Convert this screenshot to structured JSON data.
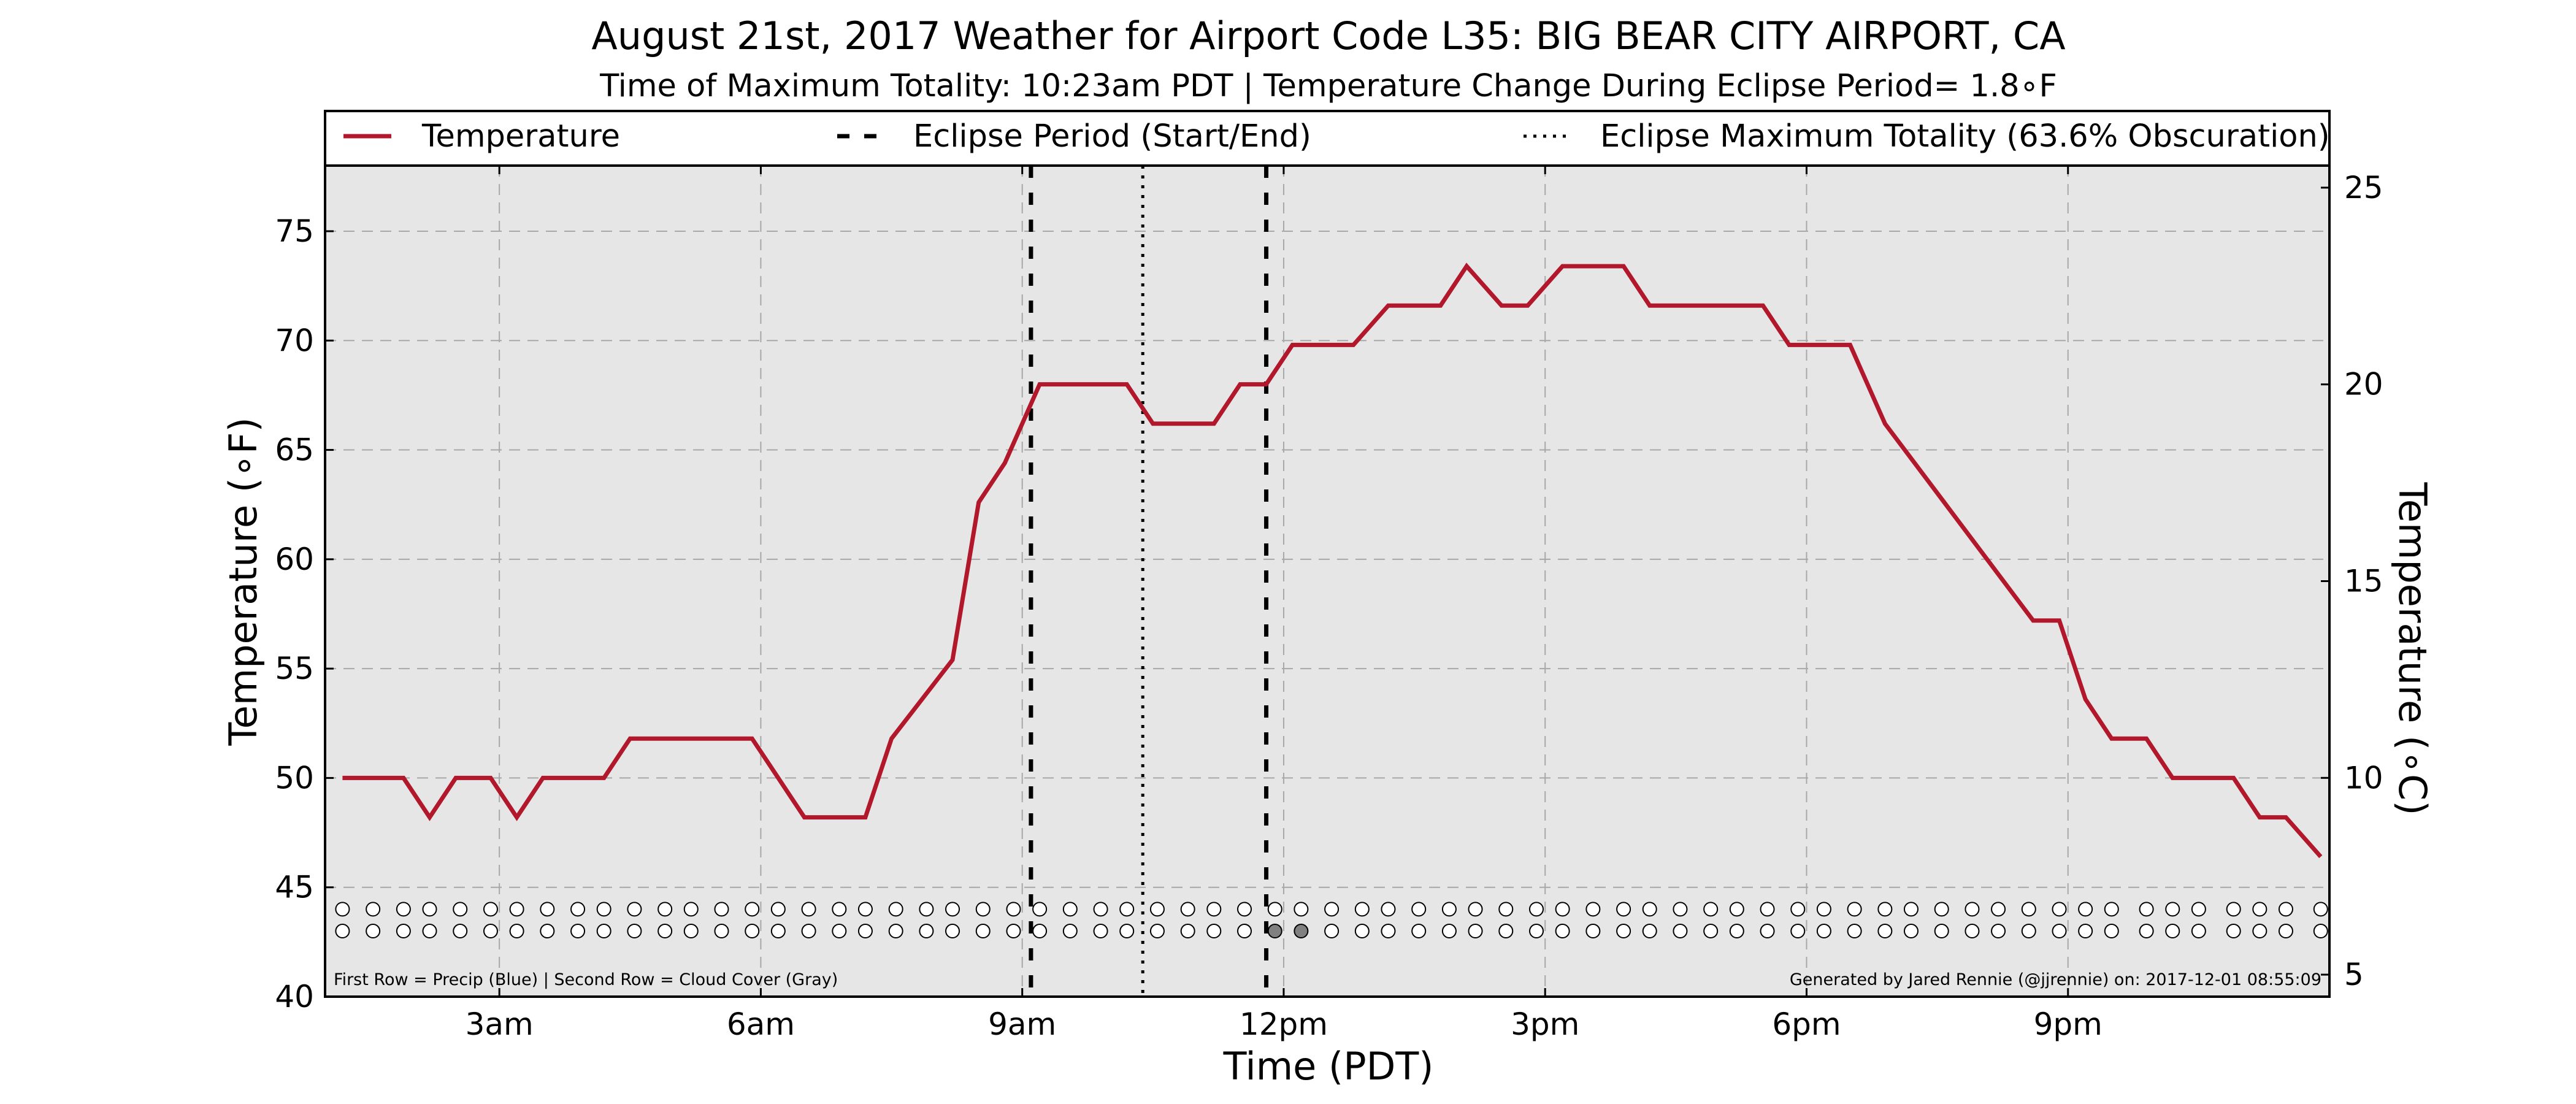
{
  "chart_data": {
    "type": "line",
    "title": "August 21st, 2017 Weather for Airport Code L35: BIG BEAR CITY AIRPORT, CA",
    "subtitle": "Time of Maximum Totality: 10:23am PDT | Temperature Change During Eclipse Period= 1.8∘F",
    "xlabel": "Time (PDT)",
    "ylabel": "Temperature (∘F)",
    "ylabel_right": "Temperature (∘C)",
    "x_unit": "hour of day (PDT)",
    "xlim": [
      1.0,
      24.0
    ],
    "ylim": [
      40,
      78
    ],
    "ylim_right_celsius": [
      4.44,
      25.56
    ],
    "x_ticks": [
      {
        "value": 3,
        "label": "3am"
      },
      {
        "value": 6,
        "label": "6am"
      },
      {
        "value": 9,
        "label": "9am"
      },
      {
        "value": 12,
        "label": "12pm"
      },
      {
        "value": 15,
        "label": "3pm"
      },
      {
        "value": 18,
        "label": "6pm"
      },
      {
        "value": 21,
        "label": "9pm"
      }
    ],
    "y_ticks": [
      {
        "value": 40,
        "label": "40"
      },
      {
        "value": 45,
        "label": "45"
      },
      {
        "value": 50,
        "label": "50"
      },
      {
        "value": 55,
        "label": "55"
      },
      {
        "value": 60,
        "label": "60"
      },
      {
        "value": 65,
        "label": "65"
      },
      {
        "value": 70,
        "label": "70"
      },
      {
        "value": 75,
        "label": "75"
      }
    ],
    "y_ticks_right": [
      {
        "value": 5,
        "label": "5"
      },
      {
        "value": 10,
        "label": "10"
      },
      {
        "value": 15,
        "label": "15"
      },
      {
        "value": 20,
        "label": "20"
      },
      {
        "value": 25,
        "label": "25"
      }
    ],
    "grid": true,
    "legend_position": "top",
    "series": [
      {
        "name": "Temperature",
        "color": "#b2182b",
        "points": [
          [
            1.2,
            50.0
          ],
          [
            1.9,
            50.0
          ],
          [
            2.2,
            48.2
          ],
          [
            2.5,
            50.0
          ],
          [
            2.9,
            50.0
          ],
          [
            3.2,
            48.2
          ],
          [
            3.5,
            50.0
          ],
          [
            4.2,
            50.0
          ],
          [
            4.5,
            51.8
          ],
          [
            5.5,
            51.8
          ],
          [
            5.9,
            51.8
          ],
          [
            6.5,
            48.2
          ],
          [
            7.2,
            48.2
          ],
          [
            7.5,
            51.8
          ],
          [
            8.2,
            55.4
          ],
          [
            8.5,
            62.6
          ],
          [
            8.8,
            64.4
          ],
          [
            9.2,
            68.0
          ],
          [
            10.2,
            68.0
          ],
          [
            10.5,
            66.2
          ],
          [
            11.2,
            66.2
          ],
          [
            11.5,
            68.0
          ],
          [
            11.8,
            68.0
          ],
          [
            12.1,
            69.8
          ],
          [
            12.8,
            69.8
          ],
          [
            13.2,
            71.6
          ],
          [
            13.8,
            71.6
          ],
          [
            14.1,
            73.4
          ],
          [
            14.5,
            71.6
          ],
          [
            14.8,
            71.6
          ],
          [
            15.2,
            73.4
          ],
          [
            15.9,
            73.4
          ],
          [
            16.2,
            71.6
          ],
          [
            17.2,
            71.6
          ],
          [
            17.5,
            71.6
          ],
          [
            17.8,
            69.8
          ],
          [
            18.5,
            69.8
          ],
          [
            18.9,
            66.2
          ],
          [
            20.6,
            57.2
          ],
          [
            20.9,
            57.2
          ],
          [
            21.2,
            53.6
          ],
          [
            21.5,
            51.8
          ],
          [
            21.9,
            51.8
          ],
          [
            22.2,
            50.0
          ],
          [
            22.9,
            50.0
          ],
          [
            23.2,
            48.2
          ],
          [
            23.5,
            48.2
          ],
          [
            23.9,
            46.4
          ]
        ]
      },
      {
        "name": "Eclipse Period (Start/End)",
        "color": "#000000",
        "style": "dashed",
        "x": [
          9.1,
          11.8
        ]
      },
      {
        "name": "Eclipse Maximum Totality (63.6% Obscuration)",
        "color": "#000000",
        "style": "dotted",
        "x": [
          10.383
        ]
      }
    ],
    "marker_rows": {
      "precip_row_y": 44.0,
      "cloud_row_y": 43.0,
      "open_color": "#ffffff",
      "filled_color": "#808080",
      "precip_x": [
        1.2,
        1.55,
        1.9,
        2.2,
        2.55,
        2.9,
        3.2,
        3.55,
        3.9,
        4.2,
        4.55,
        4.9,
        5.2,
        5.55,
        5.9,
        6.2,
        6.55,
        6.9,
        7.2,
        7.55,
        7.9,
        8.2,
        8.55,
        8.9,
        9.2,
        9.55,
        9.9,
        10.2,
        10.55,
        10.9,
        11.2,
        11.55,
        11.9,
        12.2,
        12.55,
        12.9,
        13.2,
        13.55,
        13.9,
        14.2,
        14.55,
        14.9,
        15.2,
        15.55,
        15.9,
        16.2,
        16.55,
        16.9,
        17.2,
        17.55,
        17.9,
        18.2,
        18.55,
        18.9,
        19.2,
        19.55,
        19.9,
        20.2,
        20.55,
        20.9,
        21.2,
        21.5,
        21.9,
        22.2,
        22.5,
        22.9,
        23.2,
        23.5,
        23.9
      ],
      "cloud_x": [
        1.2,
        1.55,
        1.9,
        2.2,
        2.55,
        2.9,
        3.2,
        3.55,
        3.9,
        4.2,
        4.55,
        4.9,
        5.2,
        5.55,
        5.9,
        6.2,
        6.55,
        6.9,
        7.2,
        7.55,
        7.9,
        8.2,
        8.55,
        8.9,
        9.2,
        9.55,
        9.9,
        10.2,
        10.55,
        10.9,
        11.2,
        11.55,
        11.9,
        12.2,
        12.55,
        12.9,
        13.2,
        13.55,
        13.9,
        14.2,
        14.55,
        14.9,
        15.2,
        15.55,
        15.9,
        16.2,
        16.55,
        16.9,
        17.2,
        17.55,
        17.9,
        18.2,
        18.55,
        18.9,
        19.2,
        19.55,
        19.9,
        20.2,
        20.55,
        20.9,
        21.2,
        21.5,
        21.9,
        22.2,
        22.5,
        22.9,
        23.2,
        23.5,
        23.9
      ],
      "cloud_filled_x": [
        11.9,
        12.2
      ]
    }
  },
  "footer": {
    "left_note": "First Row = Precip (Blue) | Second Row = Cloud Cover (Gray)",
    "right_note": "Generated by Jared Rennie (@jjrennie) on: 2017-12-01 08:55:09"
  }
}
